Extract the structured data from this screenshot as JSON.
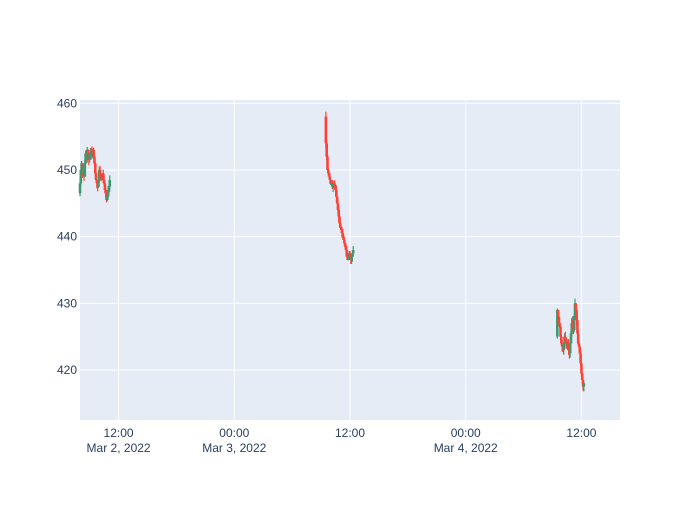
{
  "chart_data": {
    "type": "candlestick",
    "y_axis": {
      "range": [
        412.5,
        460.5
      ],
      "ticks": [
        420,
        430,
        440,
        450,
        460
      ],
      "grid": true
    },
    "x_axis": {
      "range": [
        "2022-03-02T08:00",
        "2022-03-04T16:00"
      ],
      "grid": true,
      "ticks": [
        {
          "t": "2022-03-02T12:00",
          "line1": "12:00",
          "line2": "Mar 2, 2022"
        },
        {
          "t": "2022-03-03T00:00",
          "line1": "00:00",
          "line2": "Mar 3, 2022"
        },
        {
          "t": "2022-03-03T12:00",
          "line1": "12:00",
          "line2": ""
        },
        {
          "t": "2022-03-04T00:00",
          "line1": "00:00",
          "line2": "Mar 4, 2022"
        },
        {
          "t": "2022-03-04T12:00",
          "line1": "12:00",
          "line2": ""
        }
      ]
    },
    "colors": {
      "increasing": "#3D9970",
      "decreasing": "#FF4136",
      "plot_background": "#E5ECF6",
      "grid": "#ffffff",
      "text": "#2a3f5f"
    },
    "sessions": [
      {
        "start": "2022-03-02T08:00",
        "step_minutes": 5,
        "prices": [
          446.5,
          448,
          450,
          451,
          449.5,
          450.5,
          449,
          451,
          452.5,
          451.5,
          453,
          452,
          451.5,
          452.5,
          452,
          453,
          452.5,
          453,
          452,
          451,
          449.5,
          448.5,
          448,
          447.5,
          448.5,
          450,
          449,
          448.5,
          449,
          449.5,
          448.5,
          448,
          447,
          446.5,
          445.5,
          446,
          447,
          447.5,
          448.5
        ]
      },
      {
        "start": "2022-03-03T09:30",
        "step_minutes": 5,
        "prices": [
          458,
          454,
          452,
          450,
          449.5,
          449,
          448.5,
          448.5,
          448,
          447.5,
          448,
          448,
          447.5,
          447,
          446,
          445,
          444,
          443,
          442,
          441.5,
          441,
          440.5,
          440,
          439.5,
          439,
          438.5,
          438,
          437,
          436.5,
          437,
          437.5,
          437,
          436.5,
          437,
          437.5,
          438
        ]
      },
      {
        "start": "2022-03-04T09:30",
        "step_minutes": 5,
        "prices": [
          425,
          429,
          428,
          427,
          426.5,
          425,
          424,
          423.5,
          423,
          424,
          425,
          424.5,
          424,
          423.5,
          424,
          423,
          422.5,
          424,
          425.5,
          427,
          427.5,
          426,
          428,
          430,
          429,
          427.5,
          425.5,
          424,
          423.5,
          422.5,
          421,
          419.5,
          418.5,
          417.5,
          418
        ]
      }
    ]
  }
}
